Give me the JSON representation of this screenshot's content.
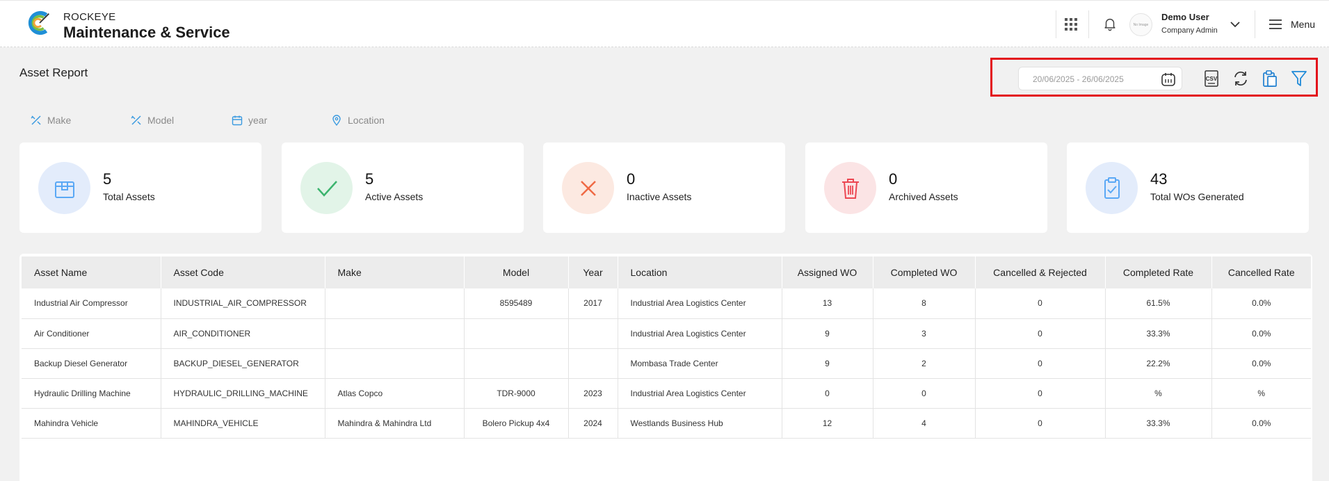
{
  "header": {
    "brand_small": "ROCKEYE",
    "brand_big": "Maintenance & Service",
    "avatar_text": "No Image",
    "user_name": "Demo User",
    "user_role": "Company Admin",
    "menu_label": "Menu"
  },
  "page": {
    "title": "Asset Report",
    "date_range": "20/06/2025 - 26/06/2025",
    "toolbar_icons": [
      "calendar-icon",
      "csv-icon",
      "refresh-icon",
      "clipboard-icon",
      "filter-icon"
    ]
  },
  "filters": [
    {
      "label": "Make",
      "icon": "tools-icon"
    },
    {
      "label": "Model",
      "icon": "tools-icon"
    },
    {
      "label": "year",
      "icon": "calendar-icon"
    },
    {
      "label": "Location",
      "icon": "location-pin-icon"
    }
  ],
  "cards": [
    {
      "value": "5",
      "label": "Total Assets",
      "icon": "box-icon",
      "color": "#5aa8f5",
      "bg": "#e3ecfb"
    },
    {
      "value": "5",
      "label": "Active Assets",
      "icon": "check-icon",
      "color": "#3cb46e",
      "bg": "#e2f4e8"
    },
    {
      "value": "0",
      "label": "Inactive Assets",
      "icon": "x-icon",
      "color": "#ef6a45",
      "bg": "#fce9e1"
    },
    {
      "value": "0",
      "label": "Archived Assets",
      "icon": "trash-icon",
      "color": "#ec4752",
      "bg": "#fbe4e5"
    },
    {
      "value": "43",
      "label": "Total WOs Generated",
      "icon": "clipboard-check-icon",
      "color": "#5aa8f5",
      "bg": "#e3ecfb"
    }
  ],
  "table": {
    "columns": [
      "Asset Name",
      "Asset Code",
      "Make",
      "Model",
      "Year",
      "Location",
      "Assigned WO",
      "Completed WO",
      "Cancelled & Rejected",
      "Completed Rate",
      "Cancelled Rate"
    ],
    "rows": [
      [
        "Industrial Air Compressor",
        "INDUSTRIAL_AIR_COMPRESSOR",
        "",
        "8595489",
        "2017",
        "Industrial Area Logistics Center",
        "13",
        "8",
        "0",
        "61.5%",
        "0.0%"
      ],
      [
        "Air Conditioner",
        "AIR_CONDITIONER",
        "",
        "",
        "",
        "Industrial Area Logistics Center",
        "9",
        "3",
        "0",
        "33.3%",
        "0.0%"
      ],
      [
        "Backup Diesel Generator",
        "BACKUP_DIESEL_GENERATOR",
        "",
        "",
        "",
        "Mombasa Trade Center",
        "9",
        "2",
        "0",
        "22.2%",
        "0.0%"
      ],
      [
        "Hydraulic Drilling Machine",
        "HYDRAULIC_DRILLING_MACHINE",
        "Atlas Copco",
        "TDR-9000",
        "2023",
        "Industrial Area Logistics Center",
        "0",
        "0",
        "0",
        "%",
        "%"
      ],
      [
        "Mahindra Vehicle",
        "MAHINDRA_VEHICLE",
        "Mahindra & Mahindra Ltd",
        "Bolero Pickup 4x4",
        "2024",
        "Westlands Business Hub",
        "12",
        "4",
        "0",
        "33.3%",
        "0.0%"
      ]
    ]
  }
}
